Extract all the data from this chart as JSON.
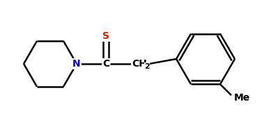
{
  "background_color": "#ffffff",
  "bond_color": "#000000",
  "atom_colors": {
    "N": "#0000cd",
    "S": "#cc2200",
    "C": "#000000",
    "Me": "#000000"
  },
  "figsize": [
    3.99,
    1.73
  ],
  "dpi": 100,
  "lw": 1.8,
  "font_size": 10,
  "ring_r": 0.3,
  "benz_r": 0.28
}
